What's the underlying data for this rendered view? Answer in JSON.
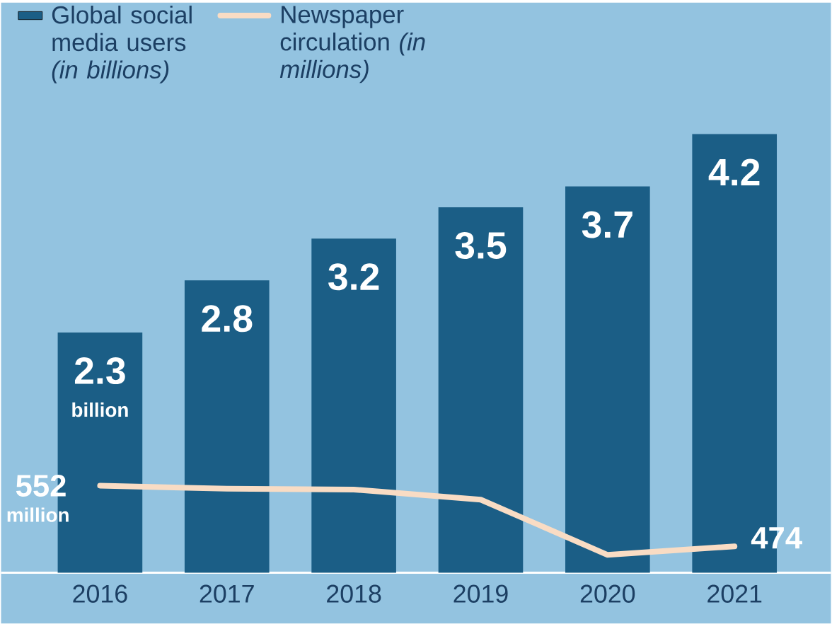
{
  "chart_data": {
    "type": "bar",
    "categories": [
      "2016",
      "2017",
      "2018",
      "2019",
      "2020",
      "2021"
    ],
    "series": [
      {
        "name": "Global social media users *(in billions)*",
        "color": "#1b5e86",
        "values": [
          2.3,
          2.8,
          3.2,
          3.5,
          3.7,
          4.2
        ],
        "value_labels": [
          "2.3",
          "2.8",
          "3.2",
          "3.5",
          "3.7",
          "4.2"
        ]
      },
      {
        "name": "Newspaper circulation *(in millions)*",
        "type": "line",
        "axis": "y2",
        "color": "#f9dcc4",
        "values": [
          552,
          548,
          547,
          534,
          463,
          474
        ],
        "value_labels": [
          "552",
          null,
          null,
          null,
          null,
          "474"
        ]
      }
    ],
    "ylim": [
      0,
      5.46
    ],
    "y2lim": [
      440,
      1173
    ],
    "annotations": [
      "billion",
      "million"
    ],
    "legend": "top left"
  }
}
